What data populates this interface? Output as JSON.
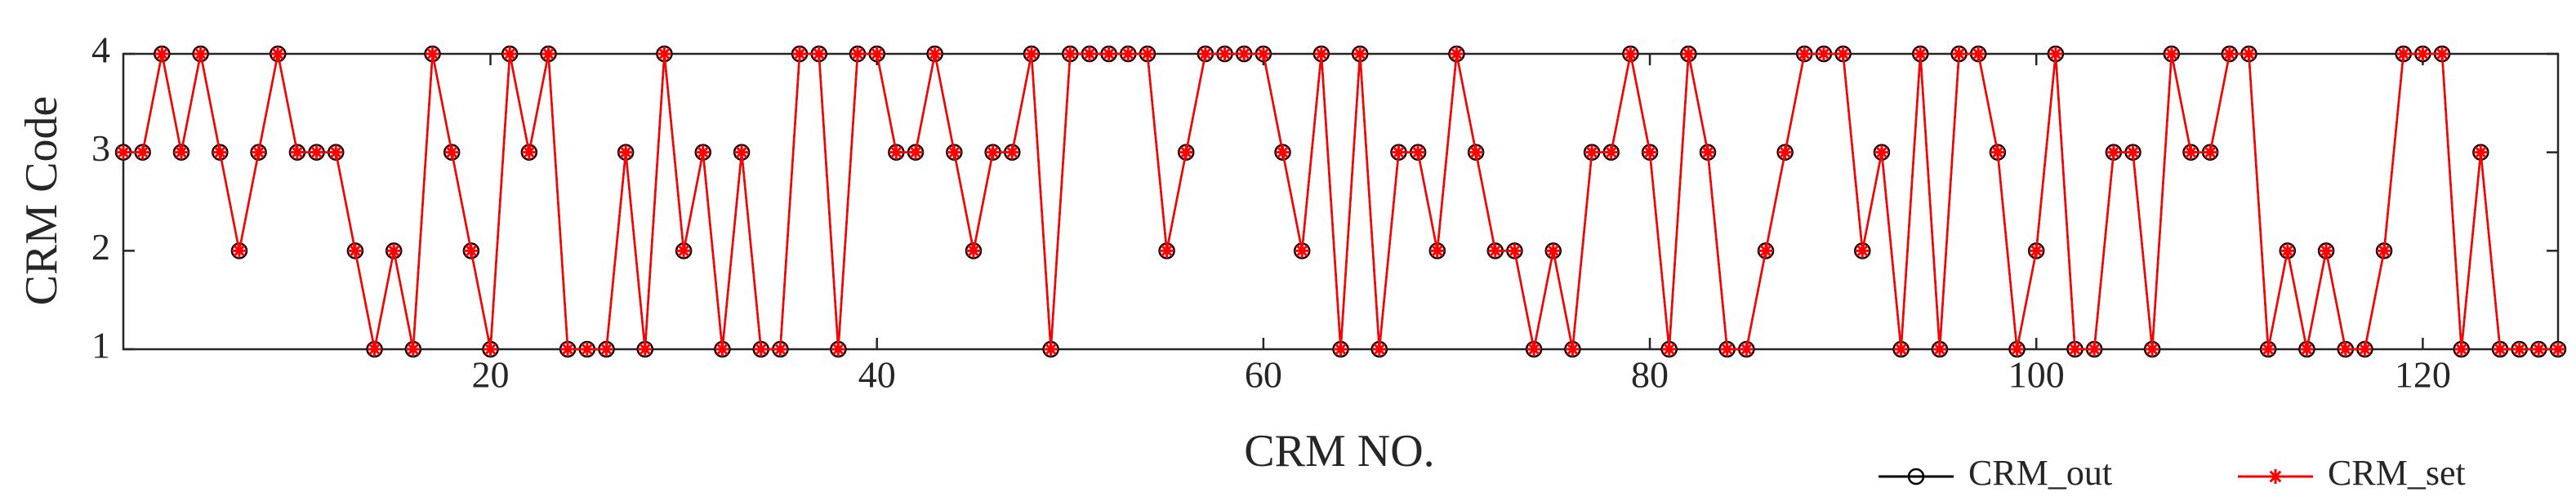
{
  "chart_data": {
    "type": "line",
    "xlabel": "CRM NO.",
    "ylabel": "CRM Code",
    "x": [
      1,
      2,
      3,
      4,
      5,
      6,
      7,
      8,
      9,
      10,
      11,
      12,
      13,
      14,
      15,
      16,
      17,
      18,
      19,
      20,
      21,
      22,
      23,
      24,
      25,
      26,
      27,
      28,
      29,
      30,
      31,
      32,
      33,
      34,
      35,
      36,
      37,
      38,
      39,
      40,
      41,
      42,
      43,
      44,
      45,
      46,
      47,
      48,
      49,
      50,
      51,
      52,
      53,
      54,
      55,
      56,
      57,
      58,
      59,
      60,
      61,
      62,
      63,
      64,
      65,
      66,
      67,
      68,
      69,
      70,
      71,
      72,
      73,
      74,
      75,
      76,
      77,
      78,
      79,
      80,
      81,
      82,
      83,
      84,
      85,
      86,
      87,
      88,
      89,
      90,
      91,
      92,
      93,
      94,
      95,
      96,
      97,
      98,
      99,
      100,
      101,
      102,
      103,
      104,
      105,
      106,
      107,
      108,
      109,
      110,
      111,
      112,
      113,
      114,
      115,
      116,
      117,
      118,
      119,
      120,
      121,
      122,
      123,
      124,
      125,
      126,
      127
    ],
    "series": [
      {
        "name": "CRM_out",
        "color": "#000000",
        "marker": "circle",
        "values": [
          3,
          3,
          4,
          3,
          4,
          3,
          2,
          3,
          4,
          3,
          3,
          3,
          2,
          1,
          2,
          1,
          4,
          3,
          2,
          1,
          4,
          3,
          4,
          1,
          1,
          1,
          3,
          1,
          4,
          2,
          3,
          1,
          3,
          1,
          1,
          4,
          4,
          1,
          4,
          4,
          3,
          3,
          4,
          3,
          2,
          3,
          3,
          4,
          1,
          4,
          4,
          4,
          4,
          4,
          2,
          3,
          4,
          4,
          4,
          4,
          3,
          2,
          4,
          1,
          4,
          1,
          3,
          3,
          2,
          4,
          3,
          2,
          2,
          1,
          2,
          1,
          3,
          3,
          4,
          3,
          1,
          4,
          3,
          1,
          1,
          2,
          3,
          4,
          4,
          4,
          2,
          3,
          1,
          4,
          1,
          4,
          4,
          3,
          1,
          2,
          4,
          1,
          1,
          3,
          3,
          1,
          4,
          3,
          3,
          4,
          4,
          1,
          2,
          1,
          2,
          1,
          1,
          2,
          4,
          4,
          4,
          1,
          3,
          1,
          1,
          1,
          1
        ]
      },
      {
        "name": "CRM_set",
        "color": "#ff0000",
        "marker": "star",
        "values": [
          3,
          3,
          4,
          3,
          4,
          3,
          2,
          3,
          4,
          3,
          3,
          3,
          2,
          1,
          2,
          1,
          4,
          3,
          2,
          1,
          4,
          3,
          4,
          1,
          1,
          1,
          3,
          1,
          4,
          2,
          3,
          1,
          3,
          1,
          1,
          4,
          4,
          1,
          4,
          4,
          3,
          3,
          4,
          3,
          2,
          3,
          3,
          4,
          1,
          4,
          4,
          4,
          4,
          4,
          2,
          3,
          4,
          4,
          4,
          4,
          3,
          2,
          4,
          1,
          4,
          1,
          3,
          3,
          2,
          4,
          3,
          2,
          2,
          1,
          2,
          1,
          3,
          3,
          4,
          3,
          1,
          4,
          3,
          1,
          1,
          2,
          3,
          4,
          4,
          4,
          2,
          3,
          1,
          4,
          1,
          4,
          4,
          3,
          1,
          2,
          4,
          1,
          1,
          3,
          3,
          1,
          4,
          3,
          3,
          4,
          4,
          1,
          2,
          1,
          2,
          1,
          1,
          2,
          4,
          4,
          4,
          1,
          3,
          1,
          1,
          1,
          1
        ]
      }
    ],
    "xlim": [
      1,
      127
    ],
    "ylim": [
      1,
      4
    ],
    "xticks": [
      20,
      40,
      60,
      80,
      100,
      120
    ],
    "yticks": [
      1,
      2,
      3,
      4
    ],
    "legend": "bottom-right",
    "grid": false
  }
}
